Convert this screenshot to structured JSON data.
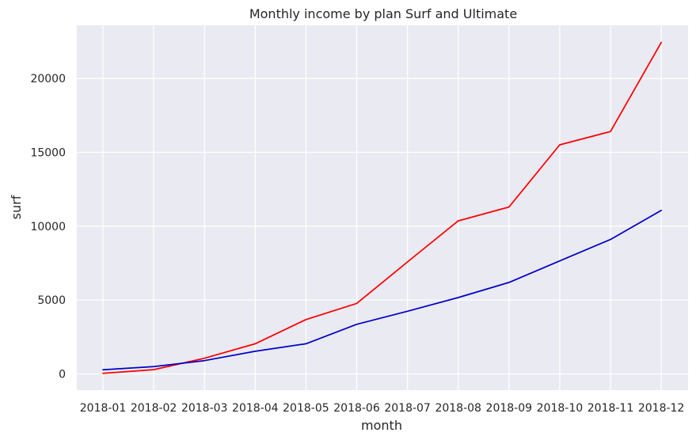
{
  "chart_data": {
    "type": "line",
    "title": "Monthly income by plan Surf and Ultimate",
    "xlabel": "month",
    "ylabel": "surf",
    "categories": [
      "2018-01",
      "2018-02",
      "2018-03",
      "2018-04",
      "2018-05",
      "2018-06",
      "2018-07",
      "2018-08",
      "2018-09",
      "2018-10",
      "2018-11",
      "2018-12"
    ],
    "yticks": [
      0,
      5000,
      10000,
      15000,
      20000
    ],
    "ytick_labels": [
      "0",
      "5000",
      "10000",
      "15000",
      "20000"
    ],
    "ylim": [
      -1100,
      23600
    ],
    "grid": true,
    "legend": "none",
    "background_color": "#eaeaf2",
    "series": [
      {
        "color": "#ff0000",
        "values": [
          40,
          290,
          1060,
          2040,
          3680,
          4770,
          7580,
          10360,
          11300,
          15510,
          16410,
          22440
        ]
      },
      {
        "color": "#0000cc",
        "values": [
          280,
          490,
          900,
          1530,
          2040,
          3360,
          4240,
          5170,
          6190,
          7650,
          9100,
          11070
        ]
      }
    ]
  }
}
